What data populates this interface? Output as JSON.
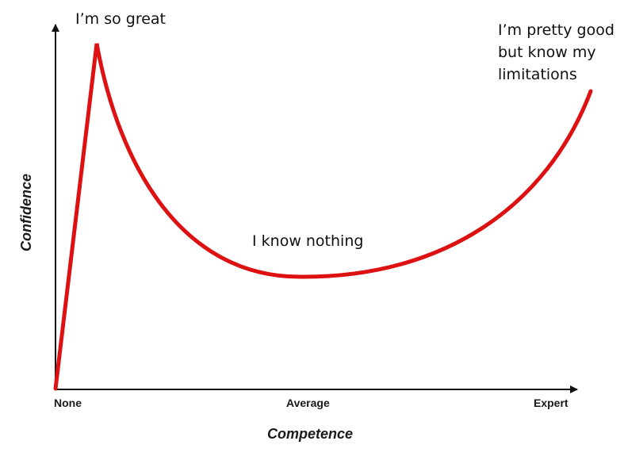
{
  "chart_data": {
    "type": "line",
    "xlabel": "Competence",
    "ylabel": "Confidence",
    "x_ticks": [
      "None",
      "Average",
      "Expert"
    ],
    "curve_color": "#dd1111",
    "axis_color": "#111111",
    "annotations": {
      "peak": "I’m so great",
      "valley": "I know nothing",
      "expert": [
        "I’m pretty good",
        "but know my",
        "limitations"
      ]
    }
  }
}
